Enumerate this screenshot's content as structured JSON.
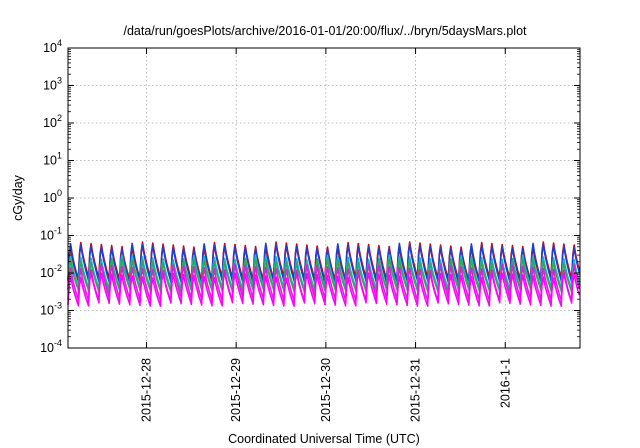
{
  "chart_data": {
    "type": "line",
    "title": "/data/run/goesPlots/archive/2016-01-01/20:00/flux/../bryn/5daysMars.plot",
    "xlabel": "Coordinated Universal Time (UTC)",
    "ylabel": "cGy/day",
    "y_scale": "log",
    "ylim": [
      0.0001,
      10000
    ],
    "xlim": [
      "2015-12-27T03:00",
      "2016-01-01T20:00"
    ],
    "grid": true,
    "legend": "none",
    "y_ticks": [
      {
        "base": "10",
        "exp": "-4",
        "value": 0.0001
      },
      {
        "base": "10",
        "exp": "-3",
        "value": 0.001
      },
      {
        "base": "10",
        "exp": "-2",
        "value": 0.01
      },
      {
        "base": "10",
        "exp": "-1",
        "value": 0.1
      },
      {
        "base": "10",
        "exp": "0",
        "value": 1
      },
      {
        "base": "10",
        "exp": "1",
        "value": 10
      },
      {
        "base": "10",
        "exp": "2",
        "value": 100
      },
      {
        "base": "10",
        "exp": "3",
        "value": 1000
      },
      {
        "base": "10",
        "exp": "4",
        "value": 10000
      }
    ],
    "x_ticks": [
      {
        "label": "2015-12-28",
        "value": "2015-12-28T00:00"
      },
      {
        "label": "2015-12-29",
        "value": "2015-12-29T00:00"
      },
      {
        "label": "2015-12-30",
        "value": "2015-12-30T00:00"
      },
      {
        "label": "2015-12-31",
        "value": "2015-12-31T00:00"
      },
      {
        "label": "2016-1-1",
        "value": "2016-01-01T00:00"
      }
    ],
    "pattern": {
      "description": "sawtooth: rapid rise then decay, repeating",
      "period_hours": 2.75,
      "cycles": 50
    },
    "series": [
      {
        "color": "#dd0000",
        "peak": 0.08,
        "trough": 0.007
      },
      {
        "color": "#1f3fcf",
        "peak": 0.075,
        "trough": 0.006
      },
      {
        "color": "#1fb8b8",
        "peak": 0.035,
        "trough": 0.004
      },
      {
        "color": "#2ea85a",
        "peak": 0.028,
        "trough": 0.0035
      },
      {
        "color": "#e01ce0",
        "peak": 0.02,
        "trough": 0.002
      },
      {
        "color": "#ff00ff",
        "peak": 0.012,
        "trough": 0.0015
      }
    ]
  }
}
